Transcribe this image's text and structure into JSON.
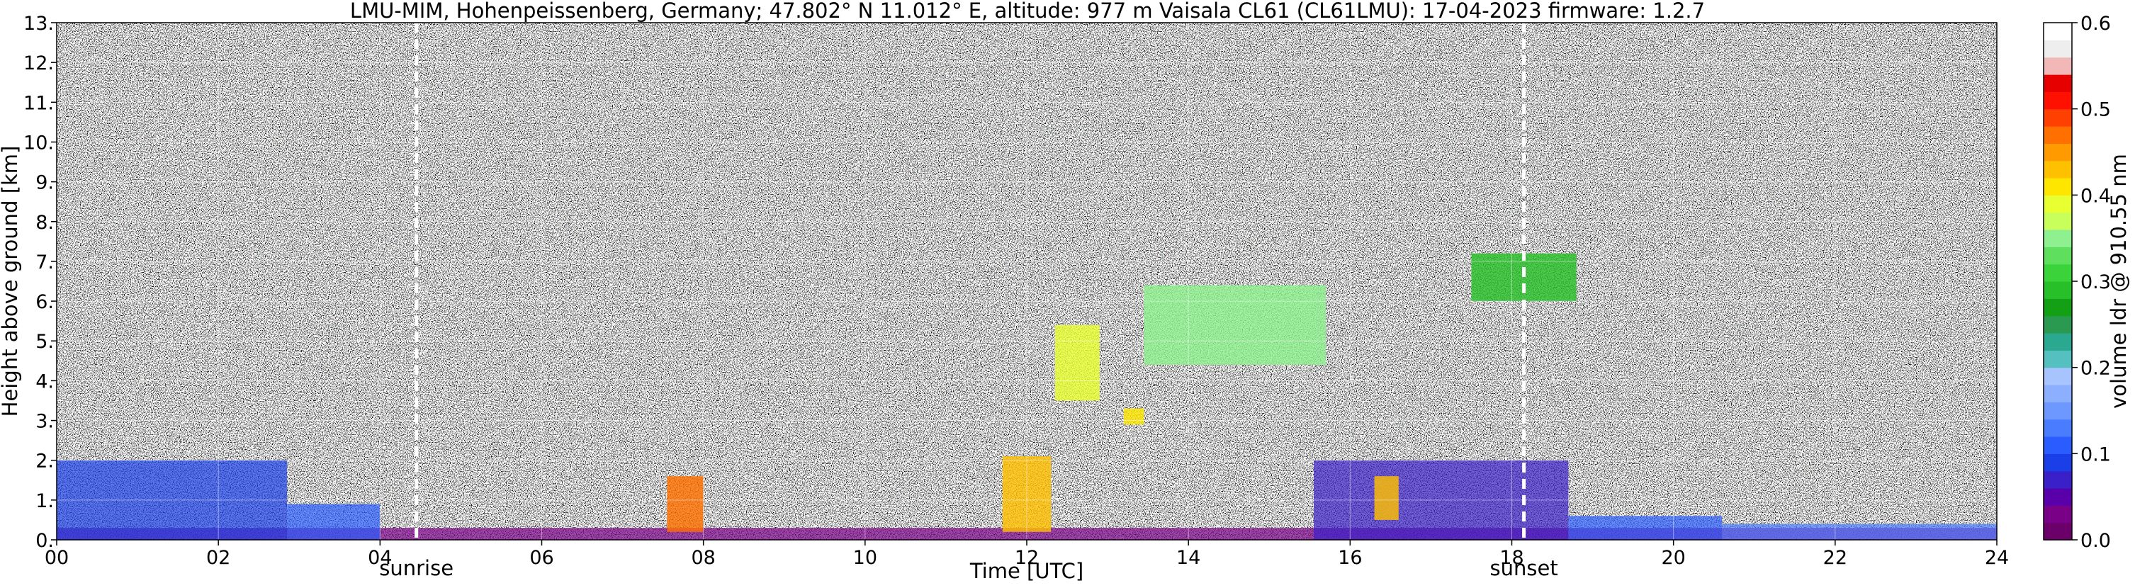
{
  "chart_data": {
    "type": "heatmap",
    "title": "LMU-MIM, Hohenpeissenberg, Germany; 47.802° N 11.012° E, altitude: 977 m    Vaisala CL61 (CL61LMU): 17-04-2023    firmware: 1.2.7",
    "xlabel": "Time [UTC]",
    "ylabel": "Height above ground [km]",
    "xlim": [
      0,
      24
    ],
    "ylim": [
      0,
      13
    ],
    "x_ticks": [
      "00",
      "02",
      "04",
      "06",
      "08",
      "10",
      "12",
      "14",
      "16",
      "18",
      "20",
      "22",
      "24"
    ],
    "y_ticks": [
      "0.",
      "1.",
      "2.",
      "3.",
      "4.",
      "5.",
      "6.",
      "7.",
      "8.",
      "9.",
      "10.",
      "11.",
      "12.",
      "13."
    ],
    "grid": true,
    "events": [
      {
        "label": "sunrise",
        "time": 4.45
      },
      {
        "label": "sunset",
        "time": 18.15
      }
    ],
    "colorbar": {
      "label": "volume ldr @ 910.55 nm",
      "range": [
        0.0,
        0.6
      ],
      "ticks": [
        "0.0",
        "0.1",
        "0.2",
        "0.3",
        "0.4",
        "0.5",
        "0.6"
      ],
      "colors": [
        "#6b006b",
        "#7a0088",
        "#5a00aa",
        "#3a20c8",
        "#1a3ee8",
        "#2a5cff",
        "#4a7cff",
        "#6c98ff",
        "#8cb0ff",
        "#a8c4ff",
        "#54c0c0",
        "#2aa890",
        "#2a9a50",
        "#14a014",
        "#28c028",
        "#3ad43a",
        "#5ee05e",
        "#8ef08e",
        "#c8ff5a",
        "#e8ff32",
        "#ffe600",
        "#ffc000",
        "#ff9a00",
        "#ff7000",
        "#ff4000",
        "#ff1000",
        "#e60000",
        "#f2b8b8",
        "#eeeeee",
        "#ffffff"
      ]
    },
    "features": [
      {
        "name": "boundary layer",
        "t_start": 0,
        "t_end": 24,
        "h_top": 0.3,
        "ldr": 0.02
      },
      {
        "name": "aerosol layer",
        "t_start": 0,
        "t_end": 2.85,
        "h_top": 2.0,
        "ldr": 0.09
      },
      {
        "name": "aerosol layer",
        "t_start": 2.85,
        "t_end": 4.0,
        "h_top": 0.9,
        "ldr": 0.1
      },
      {
        "name": "aerosol layer",
        "t_start": 15.55,
        "t_end": 18.7,
        "h_top": 2.0,
        "ldr": 0.07
      },
      {
        "name": "aerosol layer",
        "t_start": 18.7,
        "t_end": 20.6,
        "h_top": 0.6,
        "ldr": 0.1
      },
      {
        "name": "aerosol layer",
        "t_start": 20.6,
        "t_end": 24,
        "h_top": 0.4,
        "ldr": 0.12
      },
      {
        "name": "cloud",
        "t_start": 12.35,
        "t_end": 12.9,
        "h_bottom": 3.5,
        "h_top": 5.4,
        "ldr": 0.38
      },
      {
        "name": "cloud",
        "t_start": 13.2,
        "t_end": 13.45,
        "h_bottom": 2.9,
        "h_top": 3.3,
        "ldr": 0.4
      },
      {
        "name": "cloud",
        "t_start": 13.45,
        "t_end": 15.7,
        "h_bottom": 4.4,
        "h_top": 6.4,
        "ldr": 0.35
      },
      {
        "name": "cloud",
        "t_start": 17.5,
        "t_end": 18.8,
        "h_bottom": 6.0,
        "h_top": 7.2,
        "ldr": 0.28
      },
      {
        "name": "convective plume",
        "t_start": 7.55,
        "t_end": 8.0,
        "h_bottom": 0.2,
        "h_top": 1.6,
        "ldr": 0.47
      },
      {
        "name": "convective plume",
        "t_start": 11.7,
        "t_end": 12.3,
        "h_bottom": 0.2,
        "h_top": 2.1,
        "ldr": 0.43
      },
      {
        "name": "convective plume",
        "t_start": 16.3,
        "t_end": 16.6,
        "h_bottom": 0.5,
        "h_top": 1.6,
        "ldr": 0.42
      }
    ]
  }
}
